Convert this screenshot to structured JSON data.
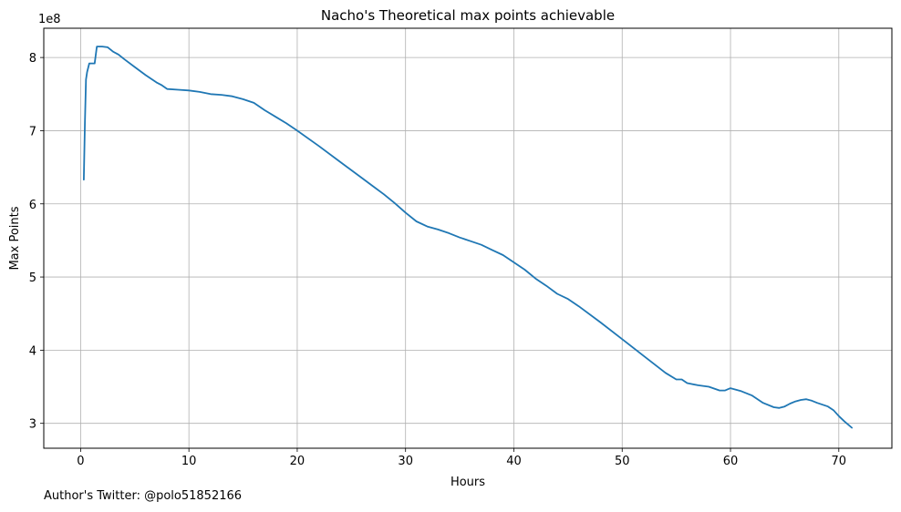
{
  "chart_data": {
    "type": "line",
    "title": "Nacho's Theoretical max points achievable",
    "xlabel": "Hours",
    "ylabel": "Max Points",
    "y_offset_label": "1e8",
    "xlim": [
      -3.4,
      74.9
    ],
    "ylim": [
      2.66,
      8.4
    ],
    "xticks": [
      0,
      10,
      20,
      30,
      40,
      50,
      60,
      70
    ],
    "yticks": [
      3,
      4,
      5,
      6,
      7,
      8
    ],
    "grid": true,
    "line_color": "#1f77b4",
    "series": [
      {
        "x": [
          0.3,
          0.4,
          0.5,
          0.6,
          0.8,
          1.0,
          1.3,
          1.5,
          1.6,
          2.0,
          2.5,
          3.0,
          3.5,
          4.0,
          5.0,
          6.0,
          7.0,
          7.5,
          8.0,
          9.0,
          10.0,
          11.0,
          12.0,
          13.0,
          14.0,
          15.0,
          16.0,
          17.0,
          18.0,
          19.0,
          20.0,
          22.0,
          24.0,
          26.0,
          27.0,
          28.0,
          29.0,
          30.0,
          31.0,
          32.0,
          33.0,
          34.0,
          35.0,
          36.0,
          37.0,
          38.0,
          39.0,
          40.0,
          41.0,
          42.0,
          43.0,
          44.0,
          45.0,
          46.0,
          48.0,
          50.0,
          52.0,
          54.0,
          55.0,
          55.5,
          56.0,
          57.0,
          58.0,
          59.0,
          59.5,
          60.0,
          61.0,
          62.0,
          63.0,
          64.0,
          64.5,
          65.0,
          65.5,
          66.0,
          66.5,
          67.0,
          67.5,
          68.0,
          69.0,
          69.5,
          70.0,
          70.5,
          71.2
        ],
        "y": [
          6.33,
          7.1,
          7.7,
          7.8,
          7.92,
          7.92,
          7.92,
          8.15,
          8.15,
          8.15,
          8.14,
          8.08,
          8.04,
          7.98,
          7.87,
          7.76,
          7.66,
          7.62,
          7.57,
          7.56,
          7.55,
          7.53,
          7.5,
          7.49,
          7.47,
          7.43,
          7.38,
          7.28,
          7.19,
          7.1,
          7.0,
          6.79,
          6.57,
          6.35,
          6.24,
          6.13,
          6.01,
          5.88,
          5.76,
          5.69,
          5.65,
          5.6,
          5.54,
          5.49,
          5.44,
          5.37,
          5.3,
          5.2,
          5.1,
          4.98,
          4.88,
          4.77,
          4.7,
          4.6,
          4.38,
          4.15,
          3.92,
          3.69,
          3.6,
          3.6,
          3.55,
          3.52,
          3.5,
          3.45,
          3.45,
          3.48,
          3.44,
          3.38,
          3.28,
          3.22,
          3.21,
          3.23,
          3.27,
          3.3,
          3.32,
          3.33,
          3.31,
          3.28,
          3.23,
          3.18,
          3.1,
          3.03,
          2.94
        ]
      }
    ]
  },
  "footer": {
    "text": "Author's Twitter: @polo51852166"
  }
}
